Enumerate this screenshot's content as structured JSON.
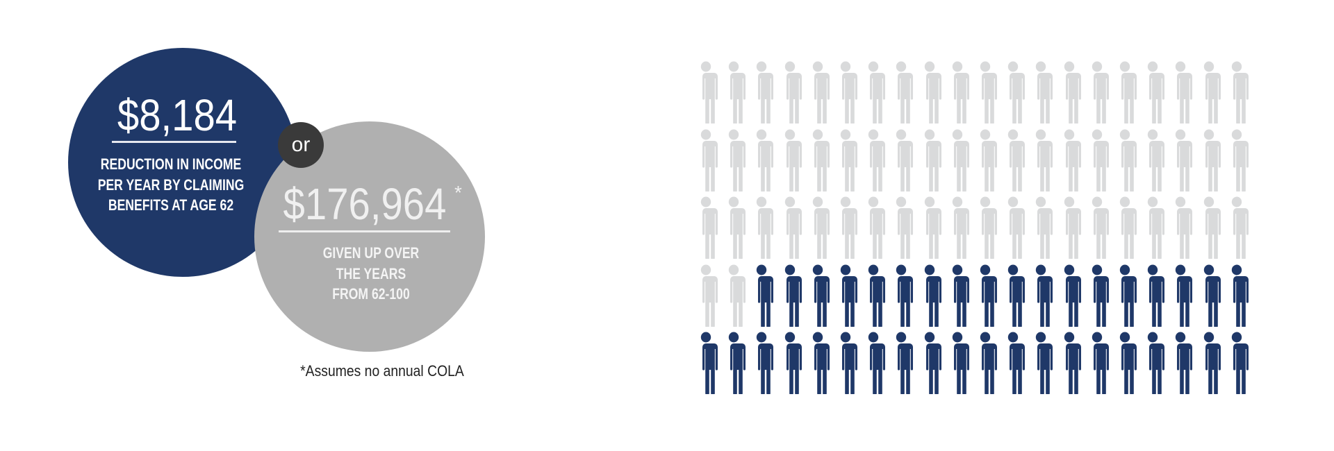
{
  "left_circle": {
    "amount": "$8,184",
    "lines": [
      "REDUCTION IN INCOME",
      "PER YEAR BY CLAIMING",
      "BENEFITS AT AGE 62"
    ]
  },
  "connector": "or",
  "right_circle": {
    "amount": "$176,964",
    "asterisk": "*",
    "lines": [
      "GIVEN UP OVER",
      "THE YEARS",
      "FROM 62-100"
    ]
  },
  "footnote": "*Assumes no annual COLA",
  "pictogram": {
    "icon": "person-icon",
    "total": 100,
    "columns": 20,
    "rows": 5,
    "highlighted": 38,
    "highlight_position": "bottom-right"
  },
  "colors": {
    "navy": "#1f3868",
    "gray_circle": "#b0b0b0",
    "person_gray": "#d9dadb",
    "or_circle": "#3a3a3a"
  }
}
